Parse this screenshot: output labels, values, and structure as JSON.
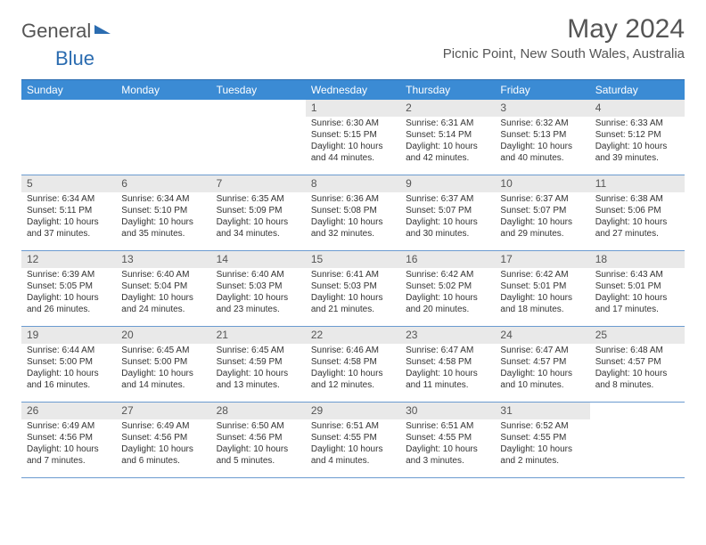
{
  "brand": {
    "part1": "General",
    "part2": "Blue"
  },
  "title": "May 2024",
  "location": "Picnic Point, New South Wales, Australia",
  "colors": {
    "header_bg": "#3b8bd4",
    "header_text": "#ffffff",
    "daynum_bg": "#e9e9e9",
    "border": "#6b9bd0",
    "text": "#333333",
    "brand_gray": "#555555",
    "brand_blue": "#2b6cb0"
  },
  "day_labels": [
    "Sunday",
    "Monday",
    "Tuesday",
    "Wednesday",
    "Thursday",
    "Friday",
    "Saturday"
  ],
  "weeks": [
    [
      null,
      null,
      null,
      {
        "n": "1",
        "sr": "6:30 AM",
        "ss": "5:15 PM",
        "dl": "10 hours and 44 minutes."
      },
      {
        "n": "2",
        "sr": "6:31 AM",
        "ss": "5:14 PM",
        "dl": "10 hours and 42 minutes."
      },
      {
        "n": "3",
        "sr": "6:32 AM",
        "ss": "5:13 PM",
        "dl": "10 hours and 40 minutes."
      },
      {
        "n": "4",
        "sr": "6:33 AM",
        "ss": "5:12 PM",
        "dl": "10 hours and 39 minutes."
      }
    ],
    [
      {
        "n": "5",
        "sr": "6:34 AM",
        "ss": "5:11 PM",
        "dl": "10 hours and 37 minutes."
      },
      {
        "n": "6",
        "sr": "6:34 AM",
        "ss": "5:10 PM",
        "dl": "10 hours and 35 minutes."
      },
      {
        "n": "7",
        "sr": "6:35 AM",
        "ss": "5:09 PM",
        "dl": "10 hours and 34 minutes."
      },
      {
        "n": "8",
        "sr": "6:36 AM",
        "ss": "5:08 PM",
        "dl": "10 hours and 32 minutes."
      },
      {
        "n": "9",
        "sr": "6:37 AM",
        "ss": "5:07 PM",
        "dl": "10 hours and 30 minutes."
      },
      {
        "n": "10",
        "sr": "6:37 AM",
        "ss": "5:07 PM",
        "dl": "10 hours and 29 minutes."
      },
      {
        "n": "11",
        "sr": "6:38 AM",
        "ss": "5:06 PM",
        "dl": "10 hours and 27 minutes."
      }
    ],
    [
      {
        "n": "12",
        "sr": "6:39 AM",
        "ss": "5:05 PM",
        "dl": "10 hours and 26 minutes."
      },
      {
        "n": "13",
        "sr": "6:40 AM",
        "ss": "5:04 PM",
        "dl": "10 hours and 24 minutes."
      },
      {
        "n": "14",
        "sr": "6:40 AM",
        "ss": "5:03 PM",
        "dl": "10 hours and 23 minutes."
      },
      {
        "n": "15",
        "sr": "6:41 AM",
        "ss": "5:03 PM",
        "dl": "10 hours and 21 minutes."
      },
      {
        "n": "16",
        "sr": "6:42 AM",
        "ss": "5:02 PM",
        "dl": "10 hours and 20 minutes."
      },
      {
        "n": "17",
        "sr": "6:42 AM",
        "ss": "5:01 PM",
        "dl": "10 hours and 18 minutes."
      },
      {
        "n": "18",
        "sr": "6:43 AM",
        "ss": "5:01 PM",
        "dl": "10 hours and 17 minutes."
      }
    ],
    [
      {
        "n": "19",
        "sr": "6:44 AM",
        "ss": "5:00 PM",
        "dl": "10 hours and 16 minutes."
      },
      {
        "n": "20",
        "sr": "6:45 AM",
        "ss": "5:00 PM",
        "dl": "10 hours and 14 minutes."
      },
      {
        "n": "21",
        "sr": "6:45 AM",
        "ss": "4:59 PM",
        "dl": "10 hours and 13 minutes."
      },
      {
        "n": "22",
        "sr": "6:46 AM",
        "ss": "4:58 PM",
        "dl": "10 hours and 12 minutes."
      },
      {
        "n": "23",
        "sr": "6:47 AM",
        "ss": "4:58 PM",
        "dl": "10 hours and 11 minutes."
      },
      {
        "n": "24",
        "sr": "6:47 AM",
        "ss": "4:57 PM",
        "dl": "10 hours and 10 minutes."
      },
      {
        "n": "25",
        "sr": "6:48 AM",
        "ss": "4:57 PM",
        "dl": "10 hours and 8 minutes."
      }
    ],
    [
      {
        "n": "26",
        "sr": "6:49 AM",
        "ss": "4:56 PM",
        "dl": "10 hours and 7 minutes."
      },
      {
        "n": "27",
        "sr": "6:49 AM",
        "ss": "4:56 PM",
        "dl": "10 hours and 6 minutes."
      },
      {
        "n": "28",
        "sr": "6:50 AM",
        "ss": "4:56 PM",
        "dl": "10 hours and 5 minutes."
      },
      {
        "n": "29",
        "sr": "6:51 AM",
        "ss": "4:55 PM",
        "dl": "10 hours and 4 minutes."
      },
      {
        "n": "30",
        "sr": "6:51 AM",
        "ss": "4:55 PM",
        "dl": "10 hours and 3 minutes."
      },
      {
        "n": "31",
        "sr": "6:52 AM",
        "ss": "4:55 PM",
        "dl": "10 hours and 2 minutes."
      },
      null
    ]
  ],
  "labels": {
    "sunrise": "Sunrise: ",
    "sunset": "Sunset: ",
    "daylight": "Daylight: "
  }
}
